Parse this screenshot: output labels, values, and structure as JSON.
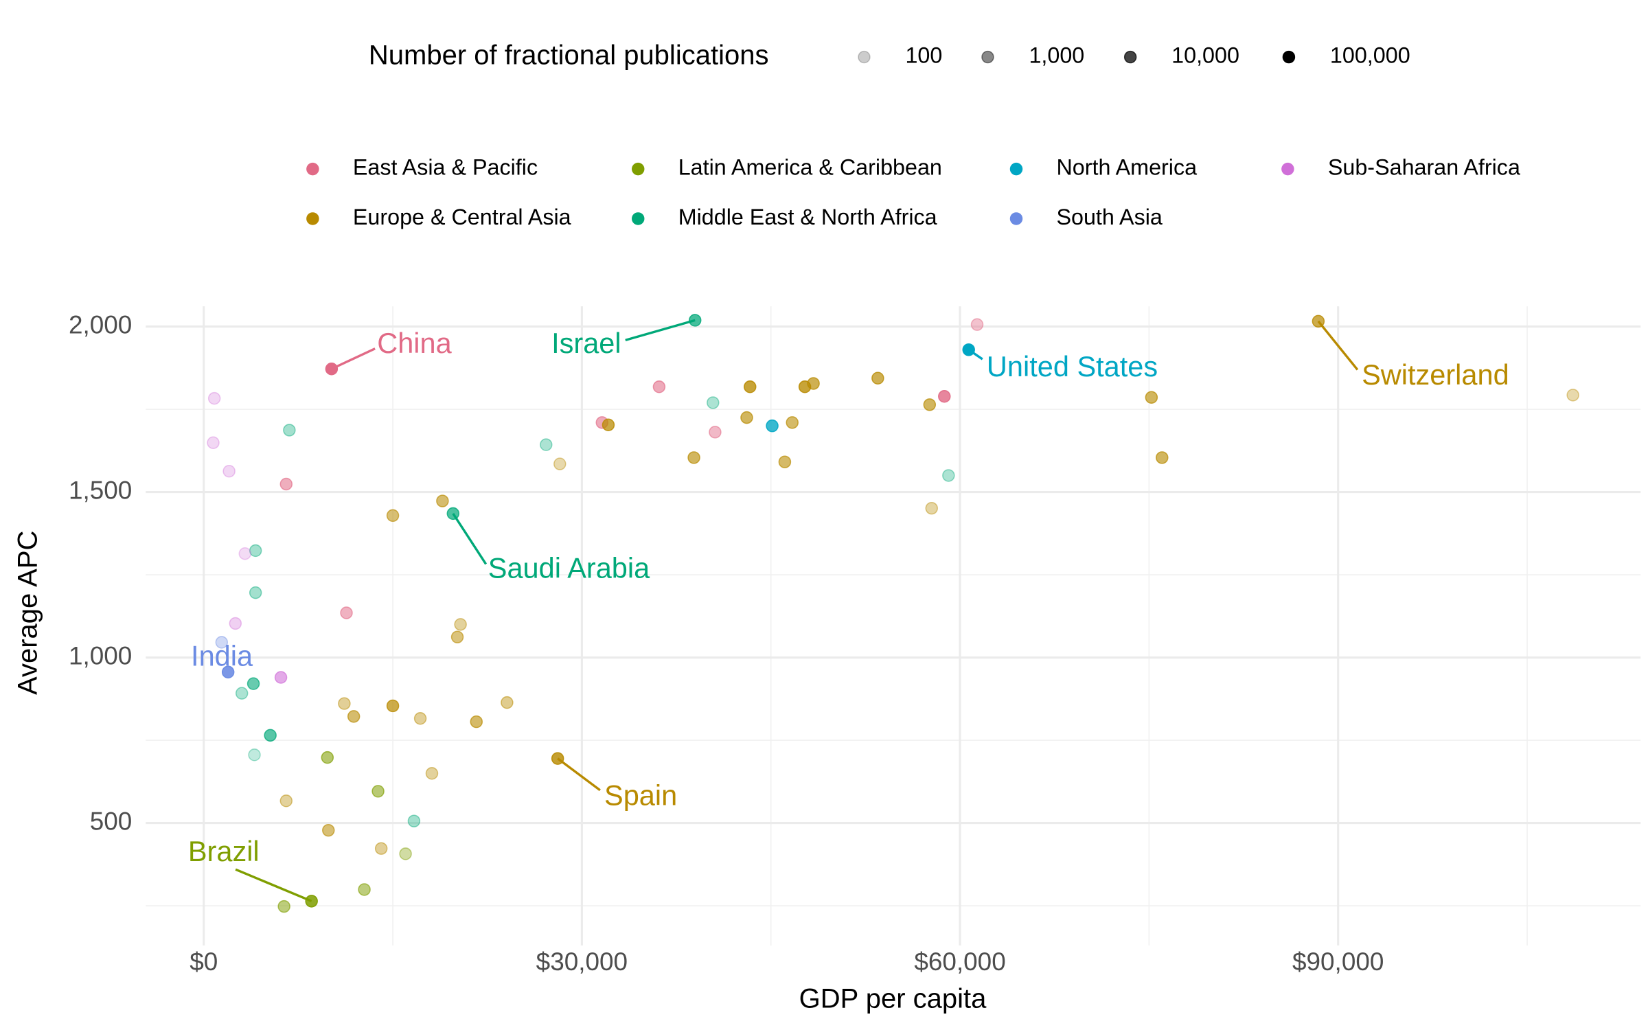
{
  "chart_data": {
    "type": "scatter",
    "x_label": "GDP per capita",
    "y_label": "Average APC",
    "xlim": [
      -4600,
      114000
    ],
    "ylim": [
      130,
      2061
    ],
    "xticks": [
      {
        "value": 0,
        "label": "$0"
      },
      {
        "value": 30000,
        "label": "$30,000"
      },
      {
        "value": 60000,
        "label": "$60,000"
      },
      {
        "value": 90000,
        "label": "$90,000"
      }
    ],
    "yticks": [
      500,
      {
        "value": 1000,
        "label": "1,000"
      },
      {
        "value": 1500,
        "label": "1,500"
      },
      {
        "value": 2000,
        "label": "2,000"
      }
    ],
    "xminorticks": [
      15000,
      45000,
      75000,
      105000
    ],
    "yminorticks": [
      250,
      750,
      1250,
      1750
    ],
    "grid": true,
    "size_legend": {
      "title": "Number of fractional publications",
      "breaks": [
        100,
        {
          "value": 1000,
          "label": "1,000"
        },
        {
          "value": 10000,
          "label": "10,000"
        },
        {
          "value": 100000,
          "label": "100,000"
        }
      ]
    },
    "series": [
      {
        "name": "East Asia & Pacific",
        "color": "#e16a86",
        "x": [
          10140,
          6540,
          11320,
          31600,
          36130,
          40570,
          58760,
          61360
        ],
        "values": [
          1872,
          1524,
          1135,
          1710,
          1818,
          1681,
          1789,
          2006
        ],
        "sizes": [
          300000,
          2000,
          1500,
          2500,
          2500,
          1000,
          20000,
          600
        ],
        "labels": [
          "China",
          null,
          null,
          null,
          null,
          null,
          null,
          null
        ]
      },
      {
        "name": "Europe & Central Asia",
        "color": "#b88a00",
        "x": [
          88430,
          28080,
          108630,
          75190,
          76030,
          57590,
          57750,
          53480,
          48370,
          47690,
          46690,
          46100,
          43340,
          43080,
          38890,
          32100,
          28250,
          18940,
          15000,
          20370,
          20120,
          11150,
          11900,
          15000,
          17180,
          21630,
          24060,
          18100,
          6540,
          9890,
          14080
        ],
        "values": [
          2016,
          695,
          1793,
          1786,
          1604,
          1764,
          1451,
          1844,
          1828,
          1818,
          1710,
          1591,
          1818,
          1725,
          1604,
          1703,
          1585,
          1473,
          1429,
          1100,
          1062,
          861,
          822,
          854,
          816,
          806,
          864,
          650,
          567,
          478,
          423
        ],
        "sizes": [
          8000,
          20000,
          300,
          4000,
          4000,
          4000,
          400,
          6000,
          6000,
          15000,
          3000,
          3000,
          15000,
          4000,
          4000,
          10000,
          300,
          2500,
          2000,
          500,
          1500,
          600,
          2500,
          8000,
          600,
          3000,
          800,
          500,
          500,
          2000,
          600
        ],
        "labels": [
          "Switzerland",
          "Spain",
          null,
          null,
          null,
          null,
          null,
          null,
          null,
          null,
          null,
          null,
          null,
          null,
          null,
          null,
          null,
          null,
          null,
          null,
          null,
          null,
          null,
          null,
          null,
          null,
          null,
          null,
          null,
          null,
          null
        ]
      },
      {
        "name": "Latin America & Caribbean",
        "color": "#7f9e00",
        "x": [
          8550,
          6370,
          12740,
          13830,
          16010,
          9810
        ],
        "values": [
          264,
          248,
          299,
          596,
          407,
          698
        ],
        "sizes": [
          30000,
          1500,
          1500,
          2000,
          400,
          2500
        ],
        "labels": [
          "Brazil",
          null,
          null,
          null,
          null,
          null
        ]
      },
      {
        "name": "Middle East & North Africa",
        "color": "#00a878",
        "x": [
          38980,
          19780,
          40400,
          27160,
          59090,
          6790,
          4110,
          4110,
          3020,
          3940,
          5280,
          4020,
          16680
        ],
        "values": [
          2019,
          1435,
          1770,
          1643,
          1550,
          1687,
          1323,
          1196,
          892,
          921,
          765,
          706,
          506
        ],
        "sizes": [
          10000,
          8000,
          300,
          300,
          300,
          400,
          400,
          400,
          300,
          3000,
          5000,
          150,
          400
        ],
        "labels": [
          "Israel",
          "Saudi Arabia",
          null,
          null,
          null,
          null,
          null,
          null,
          null,
          null,
          null,
          null,
          null
        ]
      },
      {
        "name": "North America",
        "color": "#00a6c4",
        "x": [
          60690,
          45100
        ],
        "values": [
          1930,
          1700
        ],
        "sizes": [
          300000,
          15000
        ],
        "labels": [
          "United States",
          null
        ]
      },
      {
        "name": "South Asia",
        "color": "#6b8be3",
        "x": [
          1930,
          1420
        ],
        "values": [
          956,
          1046
        ],
        "sizes": [
          40000,
          300
        ],
        "labels": [
          "India",
          null
        ]
      },
      {
        "name": "Sub-Saharan Africa",
        "color": "#d06fd8",
        "x": [
          840,
          750,
          2010,
          2510,
          6120,
          3270
        ],
        "values": [
          1783,
          1649,
          1563,
          1103,
          940,
          1314
        ],
        "sizes": [
          200,
          200,
          200,
          300,
          3000,
          150
        ],
        "labels": [
          null,
          null,
          null,
          null,
          null,
          null
        ]
      }
    ]
  }
}
